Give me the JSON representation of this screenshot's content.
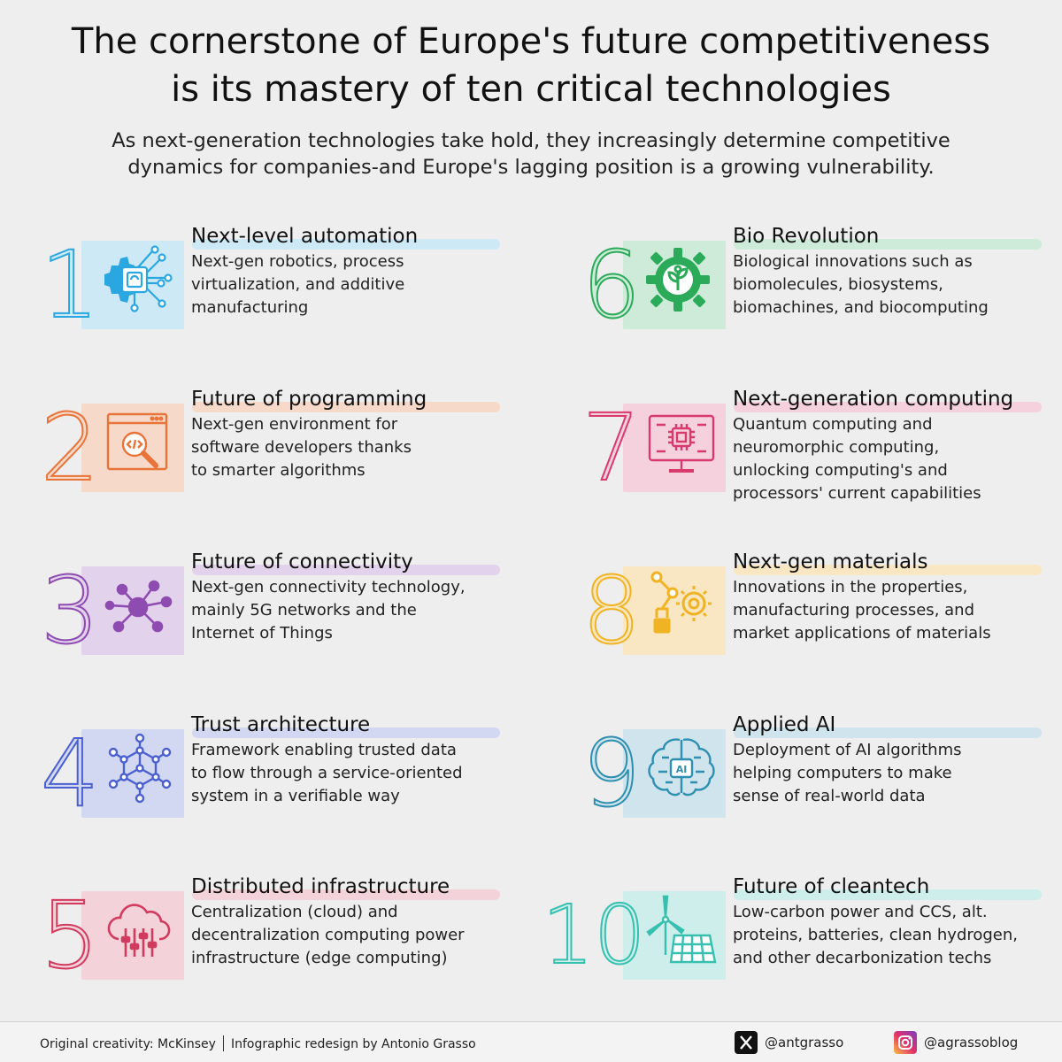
{
  "title_line1": "The cornerstone of Europe's future competitiveness",
  "title_line2": "is its mastery of ten critical technologies",
  "subtitle_line1": "As next-generation technologies take hold, they increasingly determine competitive",
  "subtitle_line2": "dynamics for companies-and Europe's lagging position is a growing vulnerability.",
  "items": [
    {
      "num": "1",
      "title": "Next-level automation",
      "desc": "Next-gen robotics, process\nvirtualization, and additive\nmanufacturing",
      "color": "#2aa7e0",
      "light": "#cde9f6",
      "icon": "gear-chip-icon"
    },
    {
      "num": "2",
      "title": "Future of programming",
      "desc": "Next-gen environment for\nsoftware developers thanks\nto smarter algorithms",
      "color": "#e8743a",
      "light": "#f6d9c8",
      "icon": "code-window-magnifier-icon"
    },
    {
      "num": "3",
      "title": "Future of connectivity",
      "desc": "Next-gen connectivity technology,\nmainly 5G networks and the\nInternet of Things",
      "color": "#8e4bb0",
      "light": "#e2d2ec",
      "icon": "network-hub-icon"
    },
    {
      "num": "4",
      "title": "Trust architecture",
      "desc": "Framework enabling trusted data\nto flow through a service-oriented\nsystem in a verifiable way",
      "color": "#4a5fd0",
      "light": "#d3d8f2",
      "icon": "hexagon-network-icon"
    },
    {
      "num": "5",
      "title": "Distributed infrastructure",
      "desc": "Centralization (cloud) and\ndecentralization computing power\ninfrastructure (edge computing)",
      "color": "#d13b5e",
      "light": "#f4d2da",
      "icon": "cloud-sliders-icon"
    },
    {
      "num": "6",
      "title": "Bio Revolution",
      "desc": "Biological innovations such as\nbiomolecules, biosystems,\nbiomachines, and biocomputing",
      "color": "#2bab5a",
      "light": "#cdebd8",
      "icon": "gear-plant-icon"
    },
    {
      "num": "7",
      "title": "Next-generation computing",
      "desc": "Quantum computing and\nneuromorphic computing,\nunlocking computing's and\nprocessors' current capabilities",
      "color": "#d93a6e",
      "light": "#f5d1dd",
      "icon": "monitor-chip-icon"
    },
    {
      "num": "8",
      "title": "Next-gen materials",
      "desc": "Innovations in the properties,\nmanufacturing processes, and\nmarket applications of materials",
      "color": "#f0b323",
      "light": "#f8e7c2",
      "icon": "robot-arm-gear-icon"
    },
    {
      "num": "9",
      "title": "Applied AI",
      "desc": "Deployment of AI algorithms\nhelping computers to make\nsense of real-world data",
      "color": "#2f8fb0",
      "light": "#cfe4ec",
      "icon": "ai-brain-icon"
    },
    {
      "num": "10",
      "title": "Future of cleantech",
      "desc": "Low-carbon power and CCS, alt.\nproteins, batteries, clean hydrogen,\nand other decarbonization techs",
      "color": "#37bfb0",
      "light": "#cdeeea",
      "icon": "wind-turbine-solar-icon"
    }
  ],
  "ai_chip_label": "AI",
  "footer": {
    "original": "Original creativity: McKinsey",
    "redesign": "Infographic redesign by Antonio Grasso",
    "x_handle": "@antgrasso",
    "instagram_handle": "@agrassoblog"
  }
}
